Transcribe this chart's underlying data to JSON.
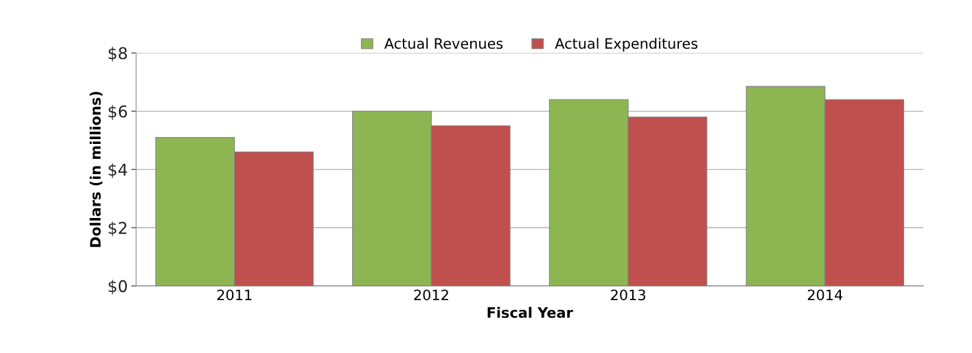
{
  "chart_data": {
    "type": "bar",
    "xlabel": "Fiscal Year",
    "ylabel": "Dollars (in millions)",
    "categories": [
      "2011",
      "2012",
      "2013",
      "2014"
    ],
    "series": [
      {
        "name": "Actual Revenues",
        "color": "#8db653",
        "values": [
          5.1,
          6.0,
          6.4,
          6.85
        ]
      },
      {
        "name": "Actual Expenditures",
        "color": "#c0504d",
        "values": [
          4.6,
          5.5,
          5.8,
          6.4
        ]
      }
    ],
    "ylim": [
      0,
      8
    ],
    "yticks": [
      {
        "value": 0,
        "label": "$0"
      },
      {
        "value": 2,
        "label": "$2"
      },
      {
        "value": 4,
        "label": "$4"
      },
      {
        "value": 6,
        "label": "$6"
      },
      {
        "value": 8,
        "label": "$8"
      }
    ],
    "grid": "y",
    "legend": "top"
  }
}
